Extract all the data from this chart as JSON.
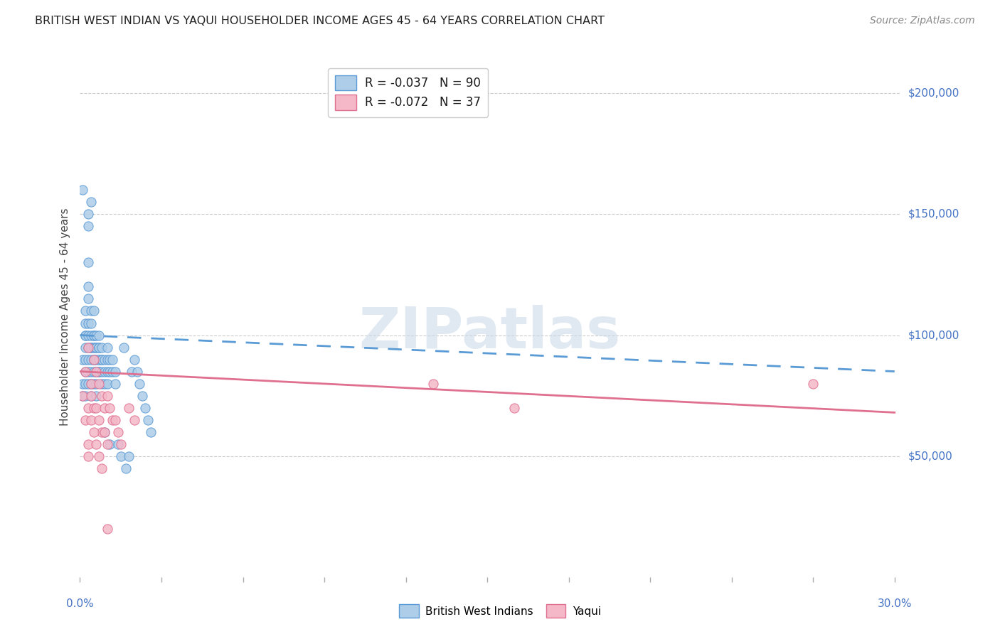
{
  "title": "BRITISH WEST INDIAN VS YAQUI HOUSEHOLDER INCOME AGES 45 - 64 YEARS CORRELATION CHART",
  "source": "Source: ZipAtlas.com",
  "ylabel": "Householder Income Ages 45 - 64 years",
  "ytick_labels": [
    "$50,000",
    "$100,000",
    "$150,000",
    "$200,000"
  ],
  "ytick_values": [
    50000,
    100000,
    150000,
    200000
  ],
  "legend_label1": "R = -0.037   N = 90",
  "legend_label2": "R = -0.072   N = 37",
  "bottom_legend1": "British West Indians",
  "bottom_legend2": "Yaqui",
  "blue_face": "#aecde8",
  "blue_edge": "#5b9bd5",
  "pink_face": "#f4b8c8",
  "pink_edge": "#e07090",
  "line_blue_color": "#5b9bd5",
  "line_pink_color": "#e07090",
  "bwi_x": [
    0.001,
    0.001,
    0.001,
    0.001,
    0.002,
    0.002,
    0.002,
    0.002,
    0.002,
    0.002,
    0.002,
    0.002,
    0.002,
    0.003,
    0.003,
    0.003,
    0.003,
    0.003,
    0.003,
    0.003,
    0.003,
    0.003,
    0.003,
    0.003,
    0.004,
    0.004,
    0.004,
    0.004,
    0.004,
    0.004,
    0.004,
    0.004,
    0.004,
    0.004,
    0.005,
    0.005,
    0.005,
    0.005,
    0.005,
    0.005,
    0.005,
    0.005,
    0.005,
    0.006,
    0.006,
    0.006,
    0.006,
    0.006,
    0.006,
    0.006,
    0.007,
    0.007,
    0.007,
    0.007,
    0.007,
    0.007,
    0.007,
    0.008,
    0.008,
    0.008,
    0.008,
    0.008,
    0.009,
    0.009,
    0.009,
    0.009,
    0.01,
    0.01,
    0.01,
    0.01,
    0.011,
    0.011,
    0.011,
    0.012,
    0.012,
    0.013,
    0.013,
    0.014,
    0.015,
    0.016,
    0.017,
    0.018,
    0.019,
    0.02,
    0.021,
    0.022,
    0.023,
    0.024,
    0.025,
    0.026
  ],
  "bwi_y": [
    75000,
    80000,
    160000,
    90000,
    100000,
    95000,
    85000,
    80000,
    100000,
    110000,
    90000,
    75000,
    105000,
    120000,
    115000,
    130000,
    95000,
    105000,
    100000,
    80000,
    90000,
    85000,
    150000,
    145000,
    95000,
    100000,
    110000,
    85000,
    90000,
    75000,
    80000,
    95000,
    105000,
    155000,
    100000,
    95000,
    90000,
    85000,
    80000,
    100000,
    95000,
    90000,
    110000,
    95000,
    90000,
    85000,
    80000,
    75000,
    100000,
    95000,
    100000,
    95000,
    90000,
    85000,
    95000,
    85000,
    90000,
    95000,
    90000,
    80000,
    85000,
    90000,
    90000,
    85000,
    80000,
    60000,
    85000,
    80000,
    90000,
    95000,
    85000,
    90000,
    55000,
    90000,
    85000,
    85000,
    80000,
    55000,
    50000,
    95000,
    45000,
    50000,
    85000,
    90000,
    85000,
    80000,
    75000,
    70000,
    65000,
    60000
  ],
  "yaqui_x": [
    0.001,
    0.002,
    0.002,
    0.003,
    0.003,
    0.004,
    0.004,
    0.004,
    0.005,
    0.005,
    0.006,
    0.006,
    0.007,
    0.007,
    0.008,
    0.008,
    0.009,
    0.01,
    0.01,
    0.011,
    0.012,
    0.013,
    0.014,
    0.015,
    0.018,
    0.02,
    0.13,
    0.16,
    0.27,
    0.003,
    0.003,
    0.005,
    0.006,
    0.007,
    0.008,
    0.009,
    0.01
  ],
  "yaqui_y": [
    75000,
    85000,
    65000,
    95000,
    70000,
    80000,
    65000,
    75000,
    90000,
    70000,
    85000,
    70000,
    80000,
    65000,
    75000,
    60000,
    70000,
    75000,
    55000,
    70000,
    65000,
    65000,
    60000,
    55000,
    70000,
    65000,
    80000,
    70000,
    80000,
    55000,
    50000,
    60000,
    55000,
    50000,
    45000,
    60000,
    20000
  ]
}
